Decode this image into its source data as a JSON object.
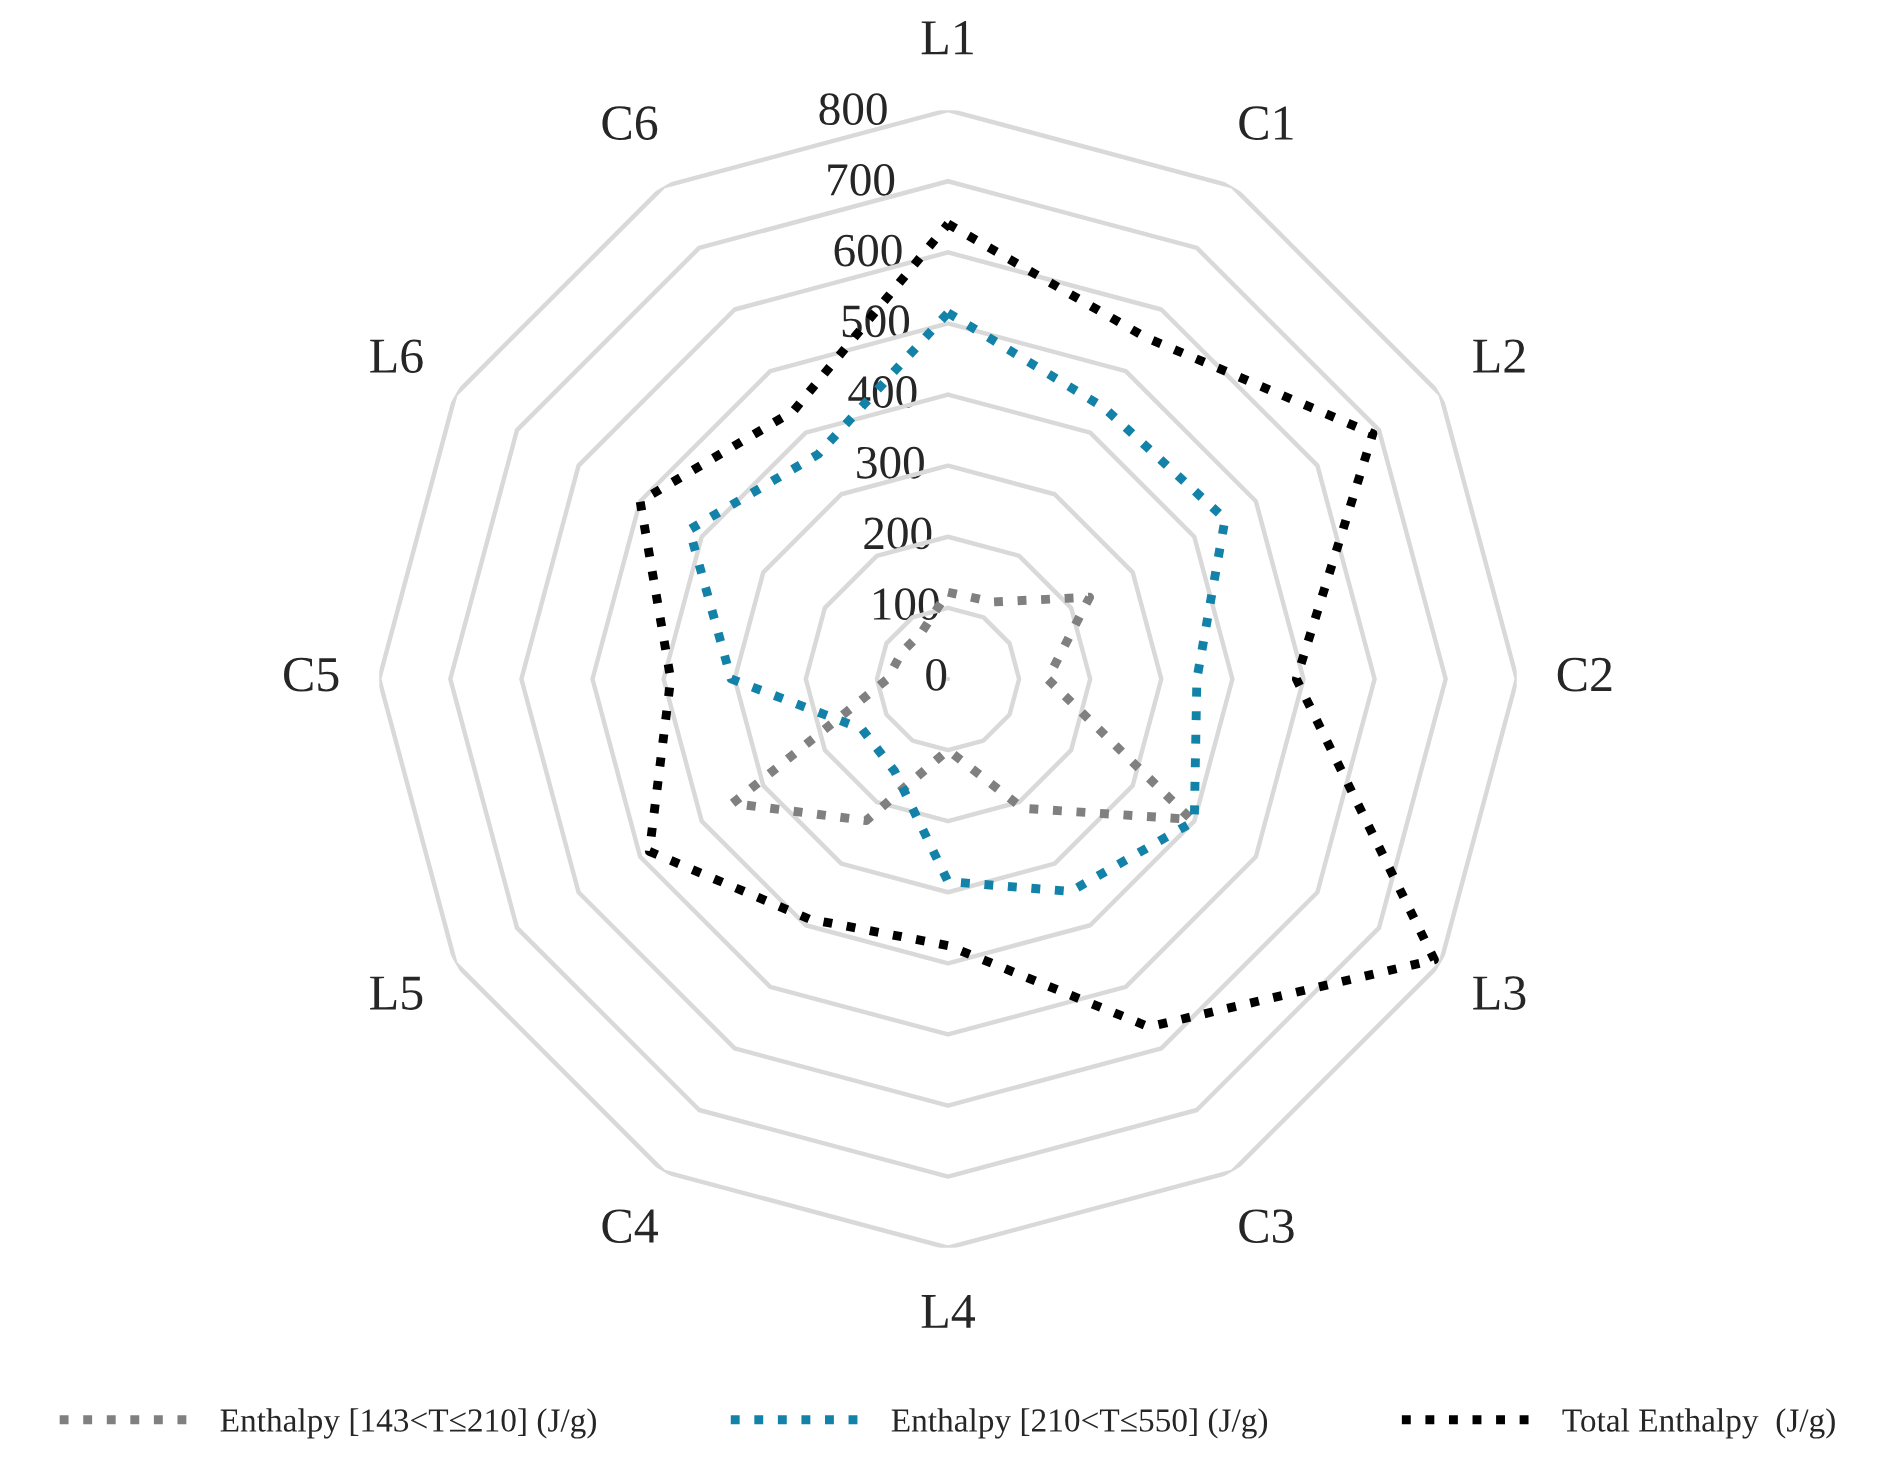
{
  "chart_data": {
    "type": "radar",
    "categories": [
      "L1",
      "C1",
      "L2",
      "C2",
      "L3",
      "C3",
      "L4",
      "C4",
      "L5",
      "C5",
      "L6",
      "C6"
    ],
    "ylim": [
      0,
      800
    ],
    "yticks": [
      0,
      100,
      200,
      300,
      400,
      500,
      600,
      700,
      800
    ],
    "grid": true,
    "legend": "bottom",
    "line_style": "dotted",
    "marker": "none",
    "series": [
      {
        "name": "Enthalpy [143<T≤210] (J/g)",
        "color": "#808080",
        "values": [
          122,
          125,
          230,
          140,
          395,
          210,
          100,
          230,
          350,
          85,
          75,
          75
        ]
      },
      {
        "name": "Enthalpy [210<T≤550] (J/g)",
        "color": "#1282a8",
        "values": [
          515,
          440,
          450,
          350,
          400,
          345,
          285,
          150,
          140,
          305,
          420,
          365
        ]
      },
      {
        "name": "Total Enthalpy  (J/g)",
        "color": "#000000",
        "values": [
          640,
          555,
          690,
          490,
          790,
          565,
          375,
          390,
          485,
          390,
          500,
          435
        ]
      }
    ]
  }
}
